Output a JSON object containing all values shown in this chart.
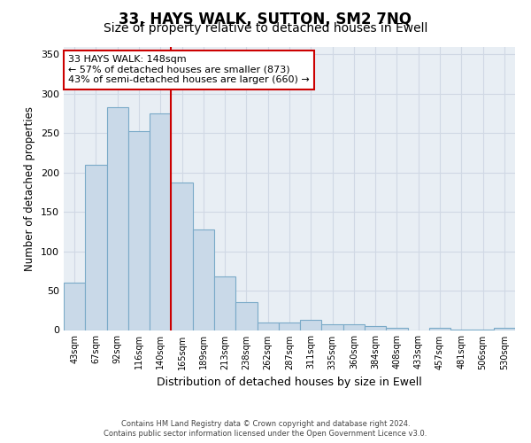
{
  "title": "33, HAYS WALK, SUTTON, SM2 7NQ",
  "subtitle": "Size of property relative to detached houses in Ewell",
  "xlabel": "Distribution of detached houses by size in Ewell",
  "ylabel": "Number of detached properties",
  "categories": [
    "43sqm",
    "67sqm",
    "92sqm",
    "116sqm",
    "140sqm",
    "165sqm",
    "189sqm",
    "213sqm",
    "238sqm",
    "262sqm",
    "287sqm",
    "311sqm",
    "335sqm",
    "360sqm",
    "384sqm",
    "408sqm",
    "433sqm",
    "457sqm",
    "481sqm",
    "506sqm",
    "530sqm"
  ],
  "values": [
    60,
    210,
    283,
    252,
    275,
    187,
    128,
    68,
    35,
    10,
    10,
    13,
    7,
    7,
    5,
    3,
    0,
    3,
    1,
    1,
    3
  ],
  "bar_color": "#c9d9e8",
  "bar_edge_color": "#7aaac8",
  "vline_color": "#cc0000",
  "vline_x": 4.5,
  "annotation_text": "33 HAYS WALK: 148sqm\n← 57% of detached houses are smaller (873)\n43% of semi-detached houses are larger (660) →",
  "annotation_box_color": "#ffffff",
  "annotation_box_edge": "#cc0000",
  "ylim": [
    0,
    360
  ],
  "yticks": [
    0,
    50,
    100,
    150,
    200,
    250,
    300,
    350
  ],
  "grid_color": "#d0d8e4",
  "background_color": "#e8eef4",
  "footer_line1": "Contains HM Land Registry data © Crown copyright and database right 2024.",
  "footer_line2": "Contains public sector information licensed under the Open Government Licence v3.0.",
  "title_fontsize": 12,
  "subtitle_fontsize": 10,
  "xlabel_fontsize": 9,
  "ylabel_fontsize": 8.5
}
